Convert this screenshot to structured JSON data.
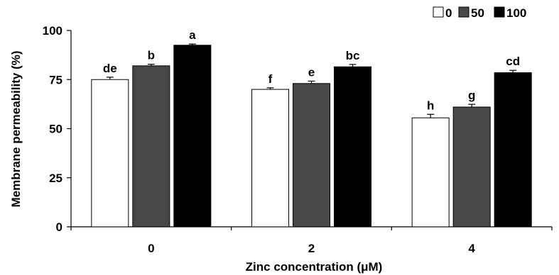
{
  "chart_data": {
    "type": "bar",
    "xlabel": "Zinc concentration (μM)",
    "ylabel": "Membrane permeability (%)",
    "ylim": [
      0,
      100
    ],
    "yticks": [
      0,
      25,
      50,
      75,
      100
    ],
    "categories": [
      "0",
      "2",
      "4"
    ],
    "legend_position": "top-right",
    "series": [
      {
        "name": "0",
        "color": "#ffffff",
        "values": [
          75,
          70,
          55.5
        ],
        "errors": [
          1.2,
          0.8,
          1.8
        ],
        "labels": [
          "de",
          "f",
          "h"
        ]
      },
      {
        "name": "50",
        "color": "#474747",
        "values": [
          82,
          73,
          61
        ],
        "errors": [
          0.8,
          1.2,
          1.4
        ],
        "labels": [
          "b",
          "e",
          "g"
        ]
      },
      {
        "name": "100",
        "color": "#000000",
        "values": [
          92.5,
          81.5,
          78.5
        ],
        "errors": [
          0.6,
          1.2,
          1.2
        ],
        "labels": [
          "a",
          "bc",
          "cd"
        ]
      }
    ]
  }
}
